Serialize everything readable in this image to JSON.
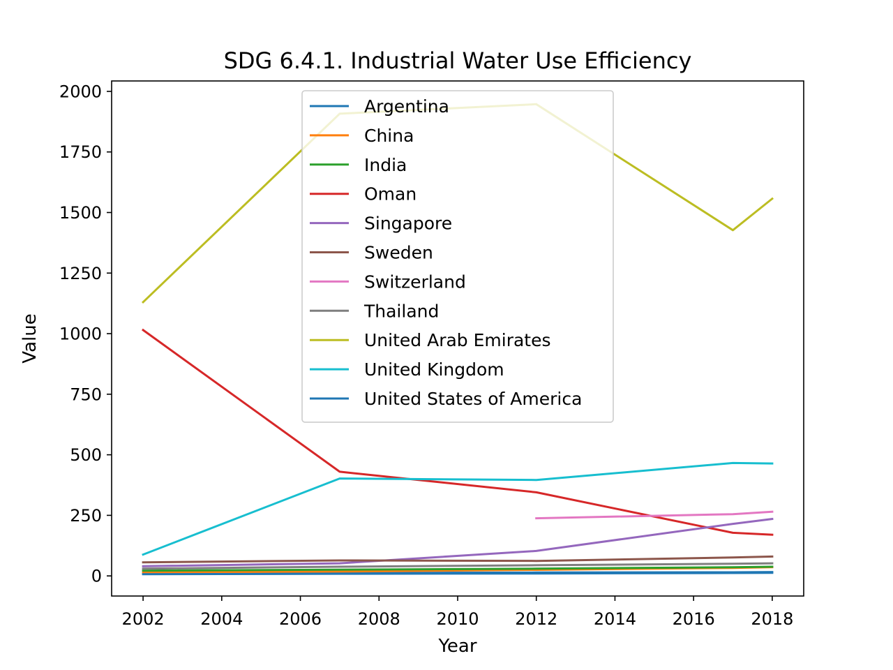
{
  "chart_data": {
    "type": "line",
    "title": "SDG 6.4.1. Industrial Water Use Efficiency",
    "xlabel": "Year",
    "ylabel": "Value",
    "xlim": [
      2001.2,
      2018.8
    ],
    "ylim": [
      -83,
      2043
    ],
    "xticks": [
      2002,
      2004,
      2006,
      2008,
      2010,
      2012,
      2014,
      2016,
      2018
    ],
    "yticks": [
      0,
      250,
      500,
      750,
      1000,
      1250,
      1500,
      1750,
      2000
    ],
    "grid": false,
    "legend_position": "upper center",
    "series": [
      {
        "name": "Argentina",
        "color": "#1f77b4",
        "x": [
          2002,
          2007,
          2012,
          2017,
          2018
        ],
        "y": [
          10,
          12,
          14,
          15,
          16
        ]
      },
      {
        "name": "China",
        "color": "#ff7f0e",
        "x": [
          2002,
          2007,
          2012,
          2017,
          2018
        ],
        "y": [
          14,
          18,
          25,
          33,
          36
        ]
      },
      {
        "name": "India",
        "color": "#2ca02c",
        "x": [
          2002,
          2007,
          2012,
          2017,
          2018
        ],
        "y": [
          22,
          26,
          30,
          36,
          38
        ]
      },
      {
        "name": "Oman",
        "color": "#d62728",
        "x": [
          2002,
          2007,
          2012,
          2017,
          2018
        ],
        "y": [
          1015,
          430,
          345,
          178,
          170
        ]
      },
      {
        "name": "Singapore",
        "color": "#9467bd",
        "x": [
          2002,
          2007,
          2012,
          2017,
          2018
        ],
        "y": [
          40,
          52,
          103,
          215,
          235
        ]
      },
      {
        "name": "Sweden",
        "color": "#8c564b",
        "x": [
          2002,
          2007,
          2012,
          2017,
          2018
        ],
        "y": [
          56,
          64,
          62,
          76,
          80
        ]
      },
      {
        "name": "Switzerland",
        "color": "#e377c2",
        "x": [
          2012,
          2017,
          2018
        ],
        "y": [
          238,
          255,
          265
        ]
      },
      {
        "name": "Thailand",
        "color": "#7f7f7f",
        "x": [
          2002,
          2007,
          2012,
          2017,
          2018
        ],
        "y": [
          30,
          38,
          44,
          50,
          52
        ]
      },
      {
        "name": "United Arab Emirates",
        "color": "#bcbd22",
        "x": [
          2002,
          2007,
          2012,
          2017,
          2018
        ],
        "y": [
          1130,
          1908,
          1947,
          1427,
          1557
        ]
      },
      {
        "name": "United Kingdom",
        "color": "#17becf",
        "x": [
          2002,
          2007,
          2012,
          2017,
          2018
        ],
        "y": [
          88,
          402,
          396,
          466,
          464
        ]
      },
      {
        "name": "United States of America",
        "color": "#1f77b4",
        "x": [
          2002,
          2007,
          2012,
          2017,
          2018
        ],
        "y": [
          7,
          9,
          10,
          12,
          13
        ]
      }
    ]
  }
}
